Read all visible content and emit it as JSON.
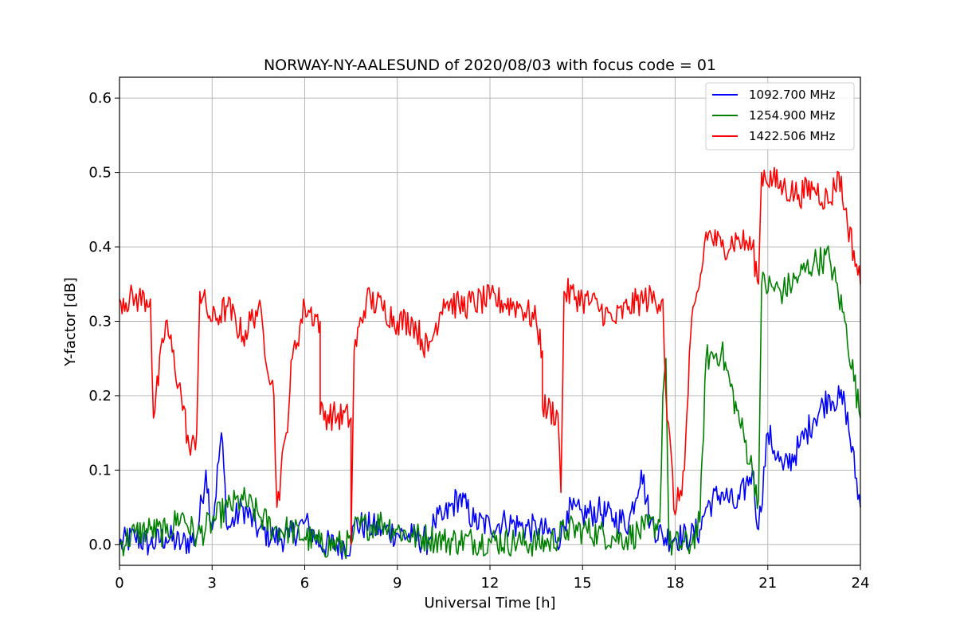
{
  "chart_data": {
    "type": "line",
    "title": "NORWAY-NY-AALESUND of 2020/08/03 with focus code = 01",
    "xlabel": "Universal Time [h]",
    "ylabel": "Y-factor [dB]",
    "xlim": [
      0,
      24
    ],
    "ylim": [
      -0.028,
      0.628
    ],
    "xticks": [
      0,
      3,
      6,
      9,
      12,
      15,
      18,
      21,
      24
    ],
    "xtick_labels": [
      "0",
      "3",
      "6",
      "9",
      "12",
      "15",
      "18",
      "21",
      "24"
    ],
    "yticks": [
      0.0,
      0.1,
      0.2,
      0.3,
      0.4,
      0.5,
      0.6
    ],
    "ytick_labels": [
      "0.0",
      "0.1",
      "0.2",
      "0.3",
      "0.4",
      "0.5",
      "0.6"
    ],
    "grid": true,
    "legend_position": "top-right",
    "series": [
      {
        "name": "1092.700 MHz",
        "color": "#0000ff",
        "approx_points": [
          [
            0,
            0
          ],
          [
            0.5,
            0.01
          ],
          [
            1,
            0
          ],
          [
            1.5,
            0.01
          ],
          [
            2,
            0
          ],
          [
            2.5,
            0.01
          ],
          [
            2.8,
            0.1
          ],
          [
            3.0,
            0.02
          ],
          [
            3.3,
            0.15
          ],
          [
            3.5,
            0.02
          ],
          [
            4,
            0.05
          ],
          [
            4.5,
            0.02
          ],
          [
            5,
            0.01
          ],
          [
            5.5,
            0.01
          ],
          [
            6,
            0.03
          ],
          [
            6.5,
            0
          ],
          [
            7.5,
            0
          ],
          [
            7.6,
            0.027
          ],
          [
            8,
            0.025
          ],
          [
            8.5,
            0.02
          ],
          [
            9,
            0.015
          ],
          [
            9.5,
            0.01
          ],
          [
            10,
            0.005
          ],
          [
            10.2,
            0.03
          ],
          [
            10.5,
            0.035
          ],
          [
            11,
            0.065
          ],
          [
            11.5,
            0.03
          ],
          [
            12,
            0.025
          ],
          [
            12.5,
            0.03
          ],
          [
            13,
            0.025
          ],
          [
            13.5,
            0.02
          ],
          [
            14.3,
            0.01
          ],
          [
            14.5,
            0.045
          ],
          [
            15,
            0.04
          ],
          [
            15.5,
            0.045
          ],
          [
            16,
            0.035
          ],
          [
            16.5,
            0.03
          ],
          [
            16.9,
            0.1
          ],
          [
            17.2,
            0.03
          ],
          [
            17.6,
            0.01
          ],
          [
            18,
            0.01
          ],
          [
            18.5,
            0.01
          ],
          [
            18.8,
            0.02
          ],
          [
            19,
            0.05
          ],
          [
            19.5,
            0.07
          ],
          [
            20,
            0.05
          ],
          [
            20.5,
            0.1
          ],
          [
            20.7,
            0.02
          ],
          [
            21,
            0.15
          ],
          [
            21.5,
            0.1
          ],
          [
            22,
            0.13
          ],
          [
            22.5,
            0.17
          ],
          [
            23,
            0.2
          ],
          [
            23.5,
            0.19
          ],
          [
            24,
            0.05
          ]
        ]
      },
      {
        "name": "1254.900 MHz",
        "color": "#008000",
        "approx_points": [
          [
            0,
            0
          ],
          [
            0.5,
            0.015
          ],
          [
            1,
            0.02
          ],
          [
            1.5,
            0.015
          ],
          [
            2,
            0.04
          ],
          [
            2.5,
            0.01
          ],
          [
            3,
            0.03
          ],
          [
            3.5,
            0.05
          ],
          [
            4,
            0.06
          ],
          [
            4.5,
            0.04
          ],
          [
            5,
            0.02
          ],
          [
            5.5,
            0.02
          ],
          [
            6,
            0.01
          ],
          [
            6.5,
            0
          ],
          [
            7.5,
            0
          ],
          [
            7.6,
            0.02
          ],
          [
            8,
            0.025
          ],
          [
            8.5,
            0.03
          ],
          [
            9,
            0.02
          ],
          [
            9.5,
            0.01
          ],
          [
            10,
            0.01
          ],
          [
            10.5,
            0.005
          ],
          [
            11,
            0.005
          ],
          [
            12,
            0.005
          ],
          [
            13,
            0.003
          ],
          [
            13.9,
            0.002
          ],
          [
            14.5,
            0.02
          ],
          [
            15,
            0.02
          ],
          [
            15.5,
            0.015
          ],
          [
            16,
            0.01
          ],
          [
            16.5,
            0.01
          ],
          [
            17,
            0.02
          ],
          [
            17.5,
            0.03
          ],
          [
            17.6,
            0.2
          ],
          [
            17.7,
            0.25
          ],
          [
            17.8,
            0
          ],
          [
            18.5,
            0
          ],
          [
            18.8,
            0.03
          ],
          [
            19,
            0.25
          ],
          [
            19.5,
            0.26
          ],
          [
            20,
            0.18
          ],
          [
            20.5,
            0.1
          ],
          [
            20.7,
            0.06
          ],
          [
            20.8,
            0.35
          ],
          [
            21.5,
            0.34
          ],
          [
            22,
            0.36
          ],
          [
            22.5,
            0.38
          ],
          [
            23,
            0.385
          ],
          [
            23.5,
            0.3
          ],
          [
            24,
            0.17
          ]
        ]
      },
      {
        "name": "1422.506 MHz",
        "color": "#ff0000",
        "approx_points": [
          [
            0,
            0.33
          ],
          [
            0.5,
            0.33
          ],
          [
            1,
            0.33
          ],
          [
            1.1,
            0.17
          ],
          [
            1.5,
            0.3
          ],
          [
            2,
            0.2
          ],
          [
            2.3,
            0.12
          ],
          [
            2.5,
            0.15
          ],
          [
            2.6,
            0.34
          ],
          [
            3,
            0.3
          ],
          [
            3.5,
            0.32
          ],
          [
            4,
            0.28
          ],
          [
            4.5,
            0.32
          ],
          [
            5,
            0.2
          ],
          [
            5.1,
            0.05
          ],
          [
            5.4,
            0.15
          ],
          [
            5.6,
            0.25
          ],
          [
            6,
            0.32
          ],
          [
            6.5,
            0.3
          ],
          [
            6.5,
            0.175
          ],
          [
            7.5,
            0.17
          ],
          [
            7.5,
            0
          ],
          [
            7.6,
            0.26
          ],
          [
            8,
            0.33
          ],
          [
            8.5,
            0.32
          ],
          [
            9,
            0.3
          ],
          [
            9.5,
            0.3
          ],
          [
            10,
            0.26
          ],
          [
            10.5,
            0.33
          ],
          [
            11,
            0.32
          ],
          [
            12,
            0.33
          ],
          [
            13,
            0.32
          ],
          [
            13.5,
            0.3
          ],
          [
            13.7,
            0.26
          ],
          [
            13.7,
            0.185
          ],
          [
            14.2,
            0.175
          ],
          [
            14.3,
            0.07
          ],
          [
            14.4,
            0.34
          ],
          [
            15,
            0.33
          ],
          [
            15.5,
            0.32
          ],
          [
            16,
            0.3
          ],
          [
            16.5,
            0.32
          ],
          [
            17,
            0.33
          ],
          [
            17.6,
            0.33
          ],
          [
            17.7,
            0.2
          ],
          [
            18,
            0.04
          ],
          [
            18.3,
            0.1
          ],
          [
            18.5,
            0.28
          ],
          [
            18.9,
            0.38
          ],
          [
            19,
            0.42
          ],
          [
            19.5,
            0.4
          ],
          [
            20,
            0.41
          ],
          [
            20.5,
            0.4
          ],
          [
            20.7,
            0.35
          ],
          [
            20.8,
            0.5
          ],
          [
            21.5,
            0.48
          ],
          [
            22,
            0.47
          ],
          [
            22.5,
            0.48
          ],
          [
            23,
            0.46
          ],
          [
            23.3,
            0.5
          ],
          [
            23.5,
            0.45
          ],
          [
            24,
            0.35
          ]
        ]
      }
    ]
  }
}
